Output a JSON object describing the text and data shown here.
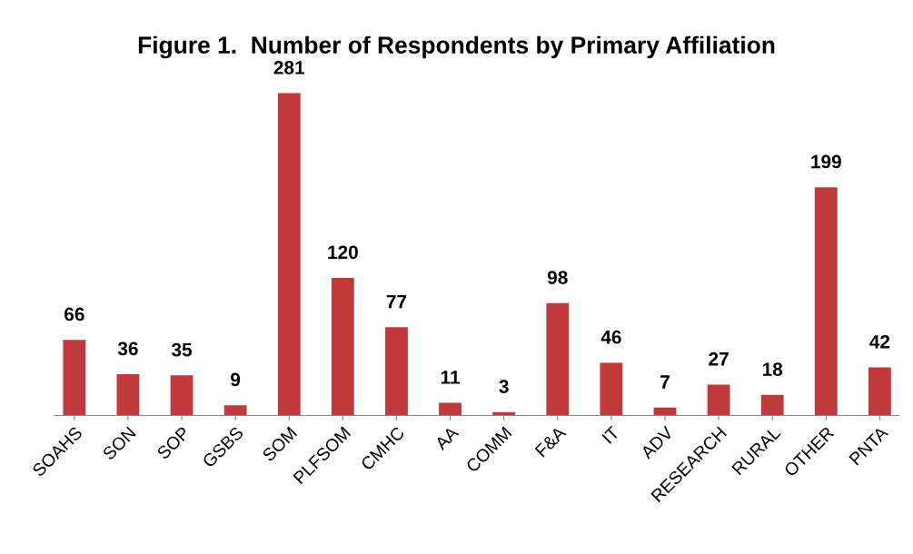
{
  "chart_data": {
    "type": "bar",
    "title": "Figure 1.  Number of Respondents by Primary Affiliation",
    "categories": [
      "SOAHS",
      "SON",
      "SOP",
      "GSBS",
      "SOM",
      "PLFSOM",
      "CMHC",
      "AA",
      "COMM",
      "F&A",
      "IT",
      "ADV",
      "RESEARCH",
      "RURAL",
      "OTHER",
      "PNTA"
    ],
    "values": [
      66,
      36,
      35,
      9,
      281,
      120,
      77,
      11,
      3,
      98,
      46,
      7,
      27,
      18,
      199,
      42
    ],
    "color": "#c0393b",
    "data_labels": true,
    "grid": false,
    "legend": false,
    "tick_labels": "x"
  }
}
